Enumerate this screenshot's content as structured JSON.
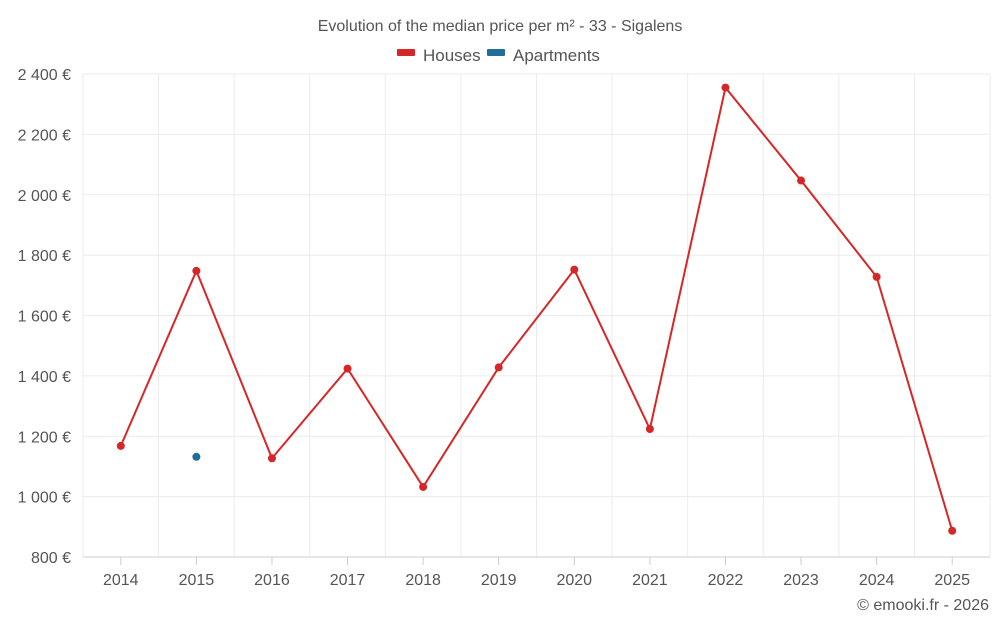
{
  "chart_data": {
    "type": "line",
    "title": "Evolution of the median price per m² - 33 - Sigalens",
    "x": [
      "2014",
      "2015",
      "2016",
      "2017",
      "2018",
      "2019",
      "2020",
      "2021",
      "2022",
      "2023",
      "2024",
      "2025"
    ],
    "ylim": [
      800,
      2400
    ],
    "yticks": [
      800,
      1000,
      1200,
      1400,
      1600,
      1800,
      2000,
      2200,
      2400
    ],
    "ytick_labels": [
      "800 €",
      "1 000 €",
      "1 200 €",
      "1 400 €",
      "1 600 €",
      "1 800 €",
      "2 000 €",
      "2 200 €",
      "2 400 €"
    ],
    "grid": true,
    "legend_position": "top-center",
    "series": [
      {
        "name": "Houses",
        "color": "#d62728",
        "values": [
          1168,
          1748,
          1127,
          1424,
          1032,
          1428,
          1752,
          1224,
          2355,
          2047,
          1728,
          887
        ]
      },
      {
        "name": "Apartments",
        "color": "#1f6e9c",
        "values": [
          null,
          1132,
          null,
          null,
          null,
          null,
          null,
          null,
          null,
          null,
          null,
          null
        ]
      }
    ],
    "credit": "© emooki.fr - 2026"
  }
}
